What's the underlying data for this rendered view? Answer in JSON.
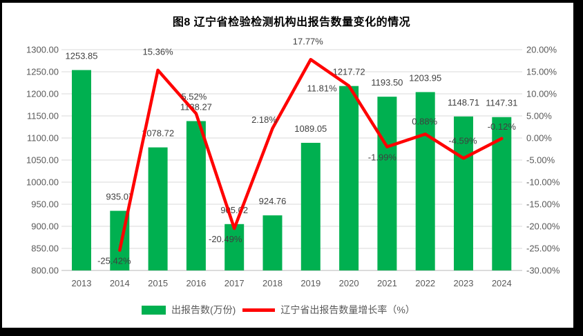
{
  "title": "图8  辽宁省检验检测机构出报告数量变化的情况",
  "chart_data": {
    "type": "bar",
    "combo": "bar + line, dual value axes, data labels shown",
    "categories": [
      "2013",
      "2014",
      "2015",
      "2016",
      "2017",
      "2018",
      "2019",
      "2020",
      "2021",
      "2022",
      "2023",
      "2024"
    ],
    "series": [
      {
        "name": "出报告数(万份)",
        "type": "bar",
        "axis": "left",
        "color": "#00B050",
        "values": [
          1253.85,
          935.07,
          1078.72,
          1138.27,
          905.02,
          924.76,
          1089.05,
          1217.72,
          1193.5,
          1203.95,
          1148.71,
          1147.31
        ],
        "labels": [
          "1253.85",
          "935.07",
          "1078.72",
          "1138.27",
          "905.02",
          "924.76",
          "1089.05",
          "1217.72",
          "1193.50",
          "1203.95",
          "1148.71",
          "1147.31"
        ]
      },
      {
        "name": "辽宁省出报告数量增长率（%）",
        "type": "line",
        "axis": "right",
        "color": "#FF0000",
        "values": [
          null,
          -25.42,
          15.36,
          5.52,
          -20.49,
          2.18,
          17.77,
          11.81,
          -1.99,
          0.88,
          -4.59,
          -0.12
        ],
        "labels": [
          null,
          "-25.42%",
          "15.36%",
          "5.52%",
          "-20.49%",
          "2.18%",
          "17.77%",
          "11.81%",
          "-1.99%",
          "0.88%",
          "-4.59%",
          "-0.12%"
        ]
      }
    ],
    "left_axis": {
      "min": 800,
      "max": 1300,
      "step": 50,
      "ticks": [
        "1300.00",
        "1250.00",
        "1200.00",
        "1150.00",
        "1100.00",
        "1050.00",
        "1000.00",
        "950.00",
        "900.00",
        "850.00",
        "800.00"
      ]
    },
    "right_axis": {
      "min": -30,
      "max": 20,
      "step": 5,
      "ticks": [
        "20.00%",
        "15.00%",
        "10.00%",
        "5.00%",
        "0.00%",
        "-5.00%",
        "-10.00%",
        "-15.00%",
        "-20.00%",
        "-25.00%",
        "-30.00%"
      ]
    },
    "grid": true,
    "legend_position": "bottom"
  },
  "colors": {
    "frame_bg": "#000000",
    "chart_bg": "#FFFFFF",
    "bar": "#00B050",
    "line": "#FF0000",
    "grid": "#DADADA",
    "axis_line": "#B7B7B7",
    "tick_text": "#595959",
    "data_label_text": "#3F3F3F",
    "title_text": "#000000"
  }
}
